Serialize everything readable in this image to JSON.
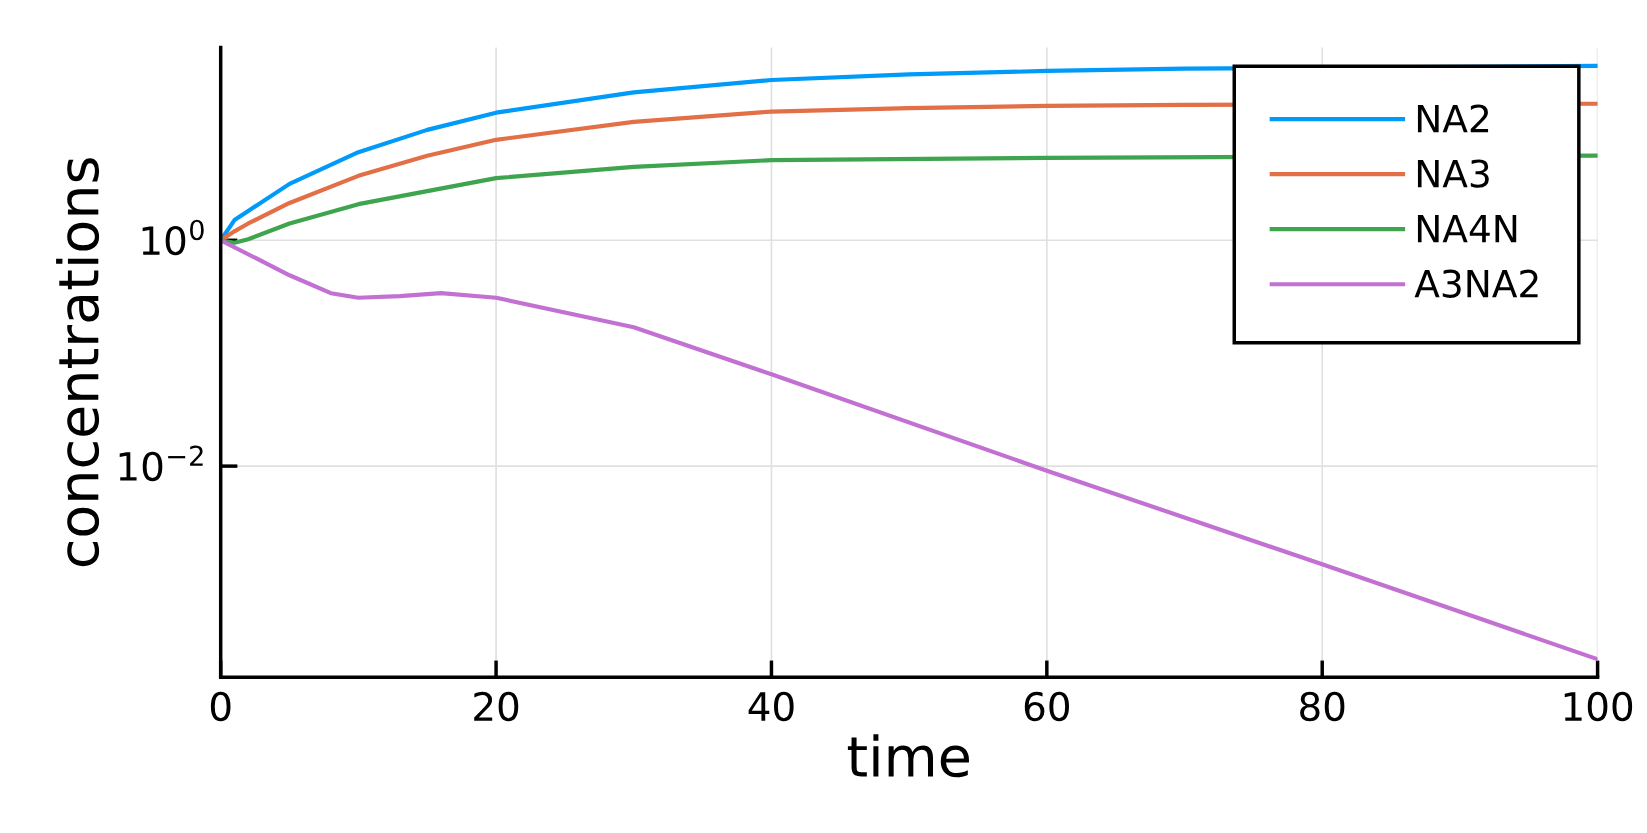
{
  "chart_data": {
    "type": "line",
    "xlabel": "time",
    "ylabel": "concentrations",
    "log": "y",
    "xlim": [
      0,
      100
    ],
    "xticks": [
      0,
      20,
      40,
      60,
      80,
      100
    ],
    "ylim": [
      0.000135,
      51
    ],
    "yticks": [
      {
        "value": 1,
        "label": "10$^{0}$"
      },
      {
        "value": 0.01,
        "label": "10$^{−2}$"
      }
    ],
    "grid": true,
    "legend": "top right",
    "line_style": "solid",
    "marker": "none",
    "series": [
      {
        "name": "NA2",
        "color": "#009af9",
        "x": [
          0,
          1,
          2,
          5,
          10,
          15,
          20,
          30,
          40,
          50,
          60,
          70,
          100
        ],
        "values": [
          1,
          1.51,
          1.82,
          3.16,
          6.03,
          9.5,
          13.5,
          20.4,
          26.3,
          29.5,
          31.6,
          33.1,
          35.0
        ]
      },
      {
        "name": "NA3",
        "color": "#e26f46",
        "x": [
          0,
          1,
          2,
          5,
          10,
          15,
          20,
          30,
          40,
          50,
          60,
          70,
          100
        ],
        "values": [
          1,
          1.2,
          1.41,
          2.14,
          3.72,
          5.6,
          7.76,
          11.2,
          13.8,
          14.8,
          15.5,
          15.8,
          16.2
        ]
      },
      {
        "name": "NA4N",
        "color": "#3ea44e",
        "x": [
          0,
          1,
          2,
          5,
          10,
          20,
          30,
          40,
          60,
          100
        ],
        "values": [
          1,
          0.95,
          1.02,
          1.41,
          2.09,
          3.55,
          4.47,
          5.13,
          5.37,
          5.62
        ]
      },
      {
        "name": "A3NA2",
        "color": "#c271d2",
        "x": [
          0,
          5,
          8,
          10,
          13,
          16,
          20,
          30,
          40,
          60,
          80,
          100
        ],
        "values": [
          1,
          0.49,
          0.34,
          0.31,
          0.32,
          0.34,
          0.31,
          0.17,
          0.065,
          0.0091,
          0.00135,
          0.000195
        ]
      }
    ]
  }
}
